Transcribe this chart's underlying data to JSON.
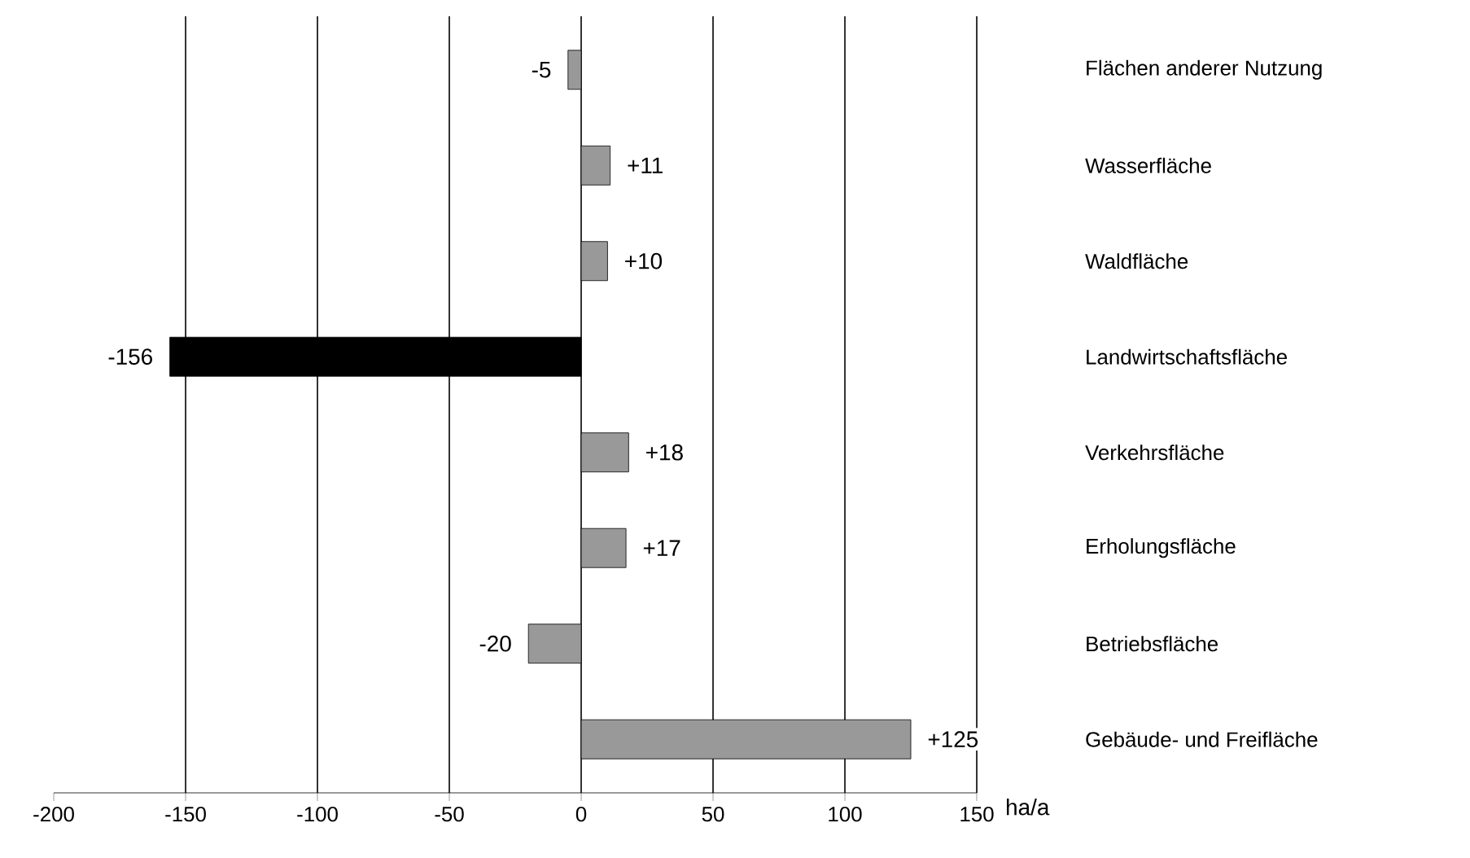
{
  "chart_data": {
    "type": "bar",
    "orientation": "horizontal",
    "categories": [
      "Flächen anderer Nutzung",
      "Wasserfläche",
      "Waldfläche",
      "Landwirtschaftsfläche",
      "Verkehrsfläche",
      "Erholungsfläche",
      "Betriebsfläche",
      "Gebäude- und Freifläche"
    ],
    "values": [
      -5,
      11,
      10,
      -156,
      18,
      17,
      -20,
      125
    ],
    "colors": [
      "#999999",
      "#999999",
      "#999999",
      "#000000",
      "#999999",
      "#999999",
      "#999999",
      "#999999"
    ],
    "value_labels": [
      "-5",
      "+11",
      "+10",
      "-156",
      "+18",
      "+17",
      "-20",
      "+125"
    ],
    "xlim": [
      -200,
      150
    ],
    "xticks": [
      -200,
      -150,
      -100,
      -50,
      0,
      50,
      100,
      150
    ],
    "xlabel": "ha/a",
    "grid": "x"
  }
}
